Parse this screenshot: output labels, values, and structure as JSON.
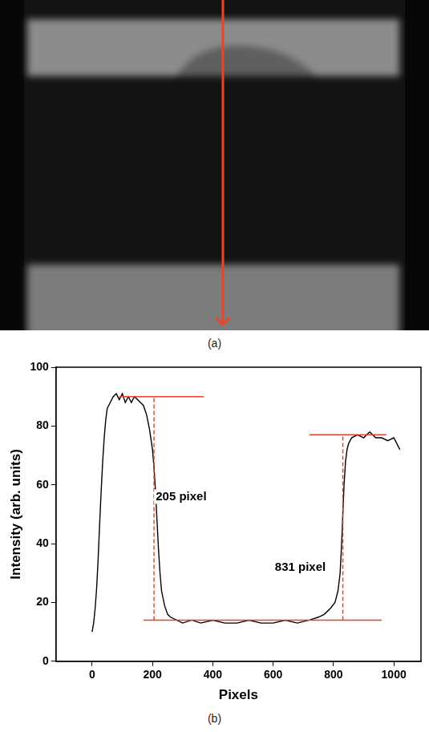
{
  "panel_labels": [
    "(a)",
    "(b)"
  ],
  "chart_data": {
    "type": "line",
    "x_label": "Pixels",
    "y_label": "Intensity (arb. units)",
    "xlim": [
      -120,
      1090
    ],
    "xticks": [
      0,
      200,
      400,
      600,
      800,
      1000
    ],
    "ylim": [
      0,
      100
    ],
    "yticks": [
      0,
      20,
      40,
      60,
      80,
      100
    ],
    "grid": false,
    "color": "#000000",
    "x": [
      0,
      5,
      10,
      15,
      20,
      25,
      30,
      35,
      40,
      45,
      50,
      60,
      70,
      80,
      90,
      100,
      110,
      120,
      130,
      140,
      150,
      160,
      170,
      180,
      190,
      200,
      205,
      210,
      215,
      220,
      225,
      230,
      240,
      250,
      260,
      280,
      300,
      330,
      360,
      400,
      440,
      480,
      520,
      560,
      600,
      640,
      680,
      720,
      750,
      770,
      790,
      805,
      815,
      822,
      827,
      831,
      835,
      840,
      845,
      850,
      860,
      880,
      900,
      920,
      940,
      960,
      980,
      1000,
      1010,
      1020
    ],
    "values": [
      10,
      13,
      18,
      25,
      35,
      47,
      58,
      68,
      76,
      82,
      86,
      88,
      90,
      91,
      89,
      91,
      88,
      90,
      88,
      90,
      89,
      88,
      87,
      84,
      79,
      72,
      66,
      58,
      48,
      38,
      30,
      24,
      19,
      16,
      15,
      14,
      13,
      14,
      13,
      14,
      13,
      13,
      14,
      13,
      13,
      14,
      13,
      14,
      15,
      16,
      18,
      20,
      24,
      30,
      40,
      50,
      60,
      68,
      72,
      74,
      76,
      77,
      76,
      78,
      76,
      76,
      75,
      76,
      74,
      72
    ],
    "guide_lines": [
      {
        "x": [
          90,
          370
        ],
        "y": [
          90,
          90
        ],
        "color": "#e8412c",
        "line_style": "solid"
      },
      {
        "x": [
          170,
          960
        ],
        "y": [
          14,
          14
        ],
        "color": "#e8412c",
        "line_style": "solid"
      },
      {
        "x": [
          720,
          975
        ],
        "y": [
          77,
          77
        ],
        "color": "#e8412c",
        "line_style": "solid"
      },
      {
        "x": [
          205,
          205
        ],
        "y": [
          14,
          90
        ],
        "color": "#e8412c",
        "line_style": "dashed"
      },
      {
        "x": [
          831,
          831
        ],
        "y": [
          14,
          77
        ],
        "color": "#e8412c",
        "line_style": "dashed"
      }
    ],
    "annotations": [
      {
        "text": "205 pixel",
        "x": 295,
        "y": 56
      },
      {
        "text": "831 pixel",
        "x": 690,
        "y": 32
      }
    ]
  }
}
